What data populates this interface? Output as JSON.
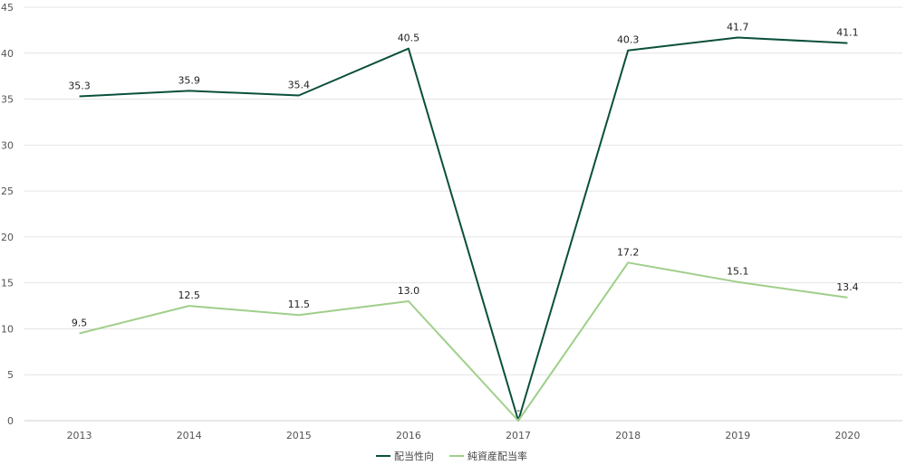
{
  "chart_data": {
    "type": "line",
    "categories": [
      "2013",
      "2014",
      "2015",
      "2016",
      "2017",
      "2018",
      "2019",
      "2020"
    ],
    "series": [
      {
        "name": "配当性向",
        "values": [
          35.3,
          35.9,
          35.4,
          40.5,
          0.0,
          40.3,
          41.7,
          41.1
        ],
        "labels": [
          "35.3",
          "35.9",
          "35.4",
          "40.5",
          "-",
          "40.3",
          "41.7",
          "41.1"
        ],
        "color": "#0b4f3c"
      },
      {
        "name": "純資産配当率",
        "values": [
          9.5,
          12.5,
          11.5,
          13.0,
          0.0,
          17.2,
          15.1,
          13.4
        ],
        "labels": [
          "9.5",
          "12.5",
          "11.5",
          "13.0",
          "",
          "17.2",
          "15.1",
          "13.4"
        ],
        "color": "#9fcf8a"
      }
    ],
    "ylim": [
      0,
      45
    ],
    "yticks": [
      "0",
      "5",
      "10",
      "15",
      "20",
      "25",
      "30",
      "35",
      "40",
      "45"
    ],
    "grid": true,
    "legend": "bottom-center"
  }
}
